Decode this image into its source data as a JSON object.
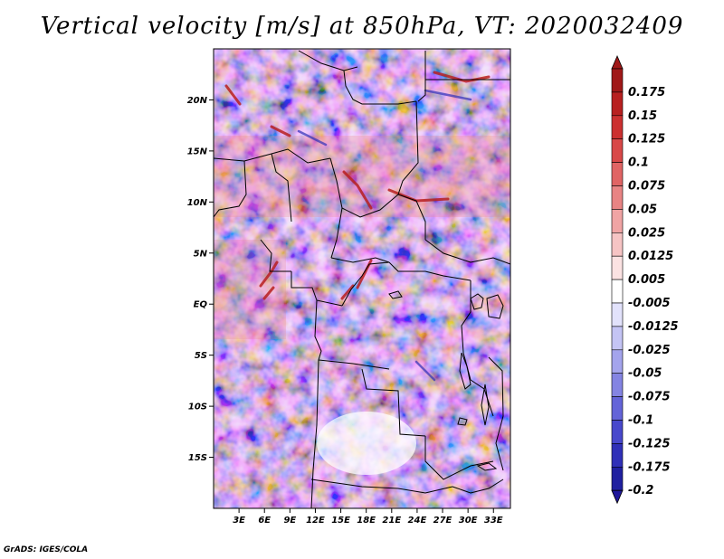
{
  "title": "Vertical velocity [m/s] at 850hPa, VT: 2020032409",
  "credit": "GrADS: IGES/COLA",
  "map": {
    "lon_range": [
      0,
      35
    ],
    "lat_range": [
      -20,
      25
    ],
    "lat_ticks": [
      {
        "value": 20,
        "label": "20N"
      },
      {
        "value": 15,
        "label": "15N"
      },
      {
        "value": 10,
        "label": "10N"
      },
      {
        "value": 5,
        "label": "5N"
      },
      {
        "value": 0,
        "label": "EQ"
      },
      {
        "value": -5,
        "label": "5S"
      },
      {
        "value": -10,
        "label": "10S"
      },
      {
        "value": -15,
        "label": "15S"
      }
    ],
    "lon_ticks": [
      {
        "value": 3,
        "label": "3E"
      },
      {
        "value": 6,
        "label": "6E"
      },
      {
        "value": 9,
        "label": "9E"
      },
      {
        "value": 12,
        "label": "12E"
      },
      {
        "value": 15,
        "label": "15E"
      },
      {
        "value": 18,
        "label": "18E"
      },
      {
        "value": 21,
        "label": "21E"
      },
      {
        "value": 24,
        "label": "24E"
      },
      {
        "value": 27,
        "label": "27E"
      },
      {
        "value": 30,
        "label": "30E"
      },
      {
        "value": 33,
        "label": "33E"
      }
    ]
  },
  "colorbar": {
    "levels": [
      {
        "label": "0.175",
        "color": "#a01818"
      },
      {
        "label": "0.15",
        "color": "#b82020"
      },
      {
        "label": "0.125",
        "color": "#cc3030"
      },
      {
        "label": "0.1",
        "color": "#d84848"
      },
      {
        "label": "0.075",
        "color": "#e06464"
      },
      {
        "label": "0.05",
        "color": "#e88484"
      },
      {
        "label": "0.025",
        "color": "#f0a4a4"
      },
      {
        "label": "0.0125",
        "color": "#f6c4c4"
      },
      {
        "label": "0.005",
        "color": "#fbe2e2"
      },
      {
        "label": "-0.005",
        "color": "#ffffff"
      },
      {
        "label": "-0.0125",
        "color": "#e2e2fb"
      },
      {
        "label": "-0.025",
        "color": "#c4c4f4"
      },
      {
        "label": "-0.05",
        "color": "#a4a4ec"
      },
      {
        "label": "-0.075",
        "color": "#8484e2"
      },
      {
        "label": "-0.1",
        "color": "#6464d8"
      },
      {
        "label": "-0.125",
        "color": "#4848cc"
      },
      {
        "label": "-0.175",
        "color": "#3030b8"
      },
      {
        "label": "-0.2",
        "color": "#2020a0"
      }
    ],
    "top_color": "#a01818",
    "bottom_color": "#20189c"
  }
}
